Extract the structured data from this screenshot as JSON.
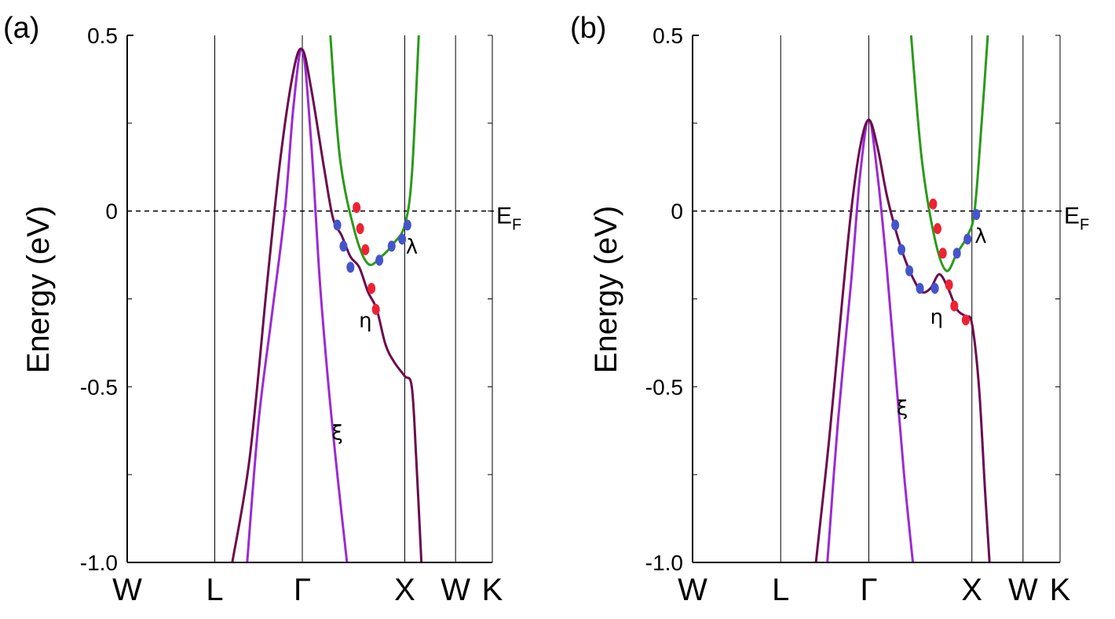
{
  "chart_data": [
    {
      "type": "line",
      "panel_label": "(a)",
      "ylabel": "Energy (eV)",
      "ylim": [
        -1.0,
        0.5
      ],
      "yticks": [
        0.5,
        0,
        -0.5,
        -1.0
      ],
      "ytick_labels": [
        "0.5",
        "0",
        "-0.5",
        "-1.0"
      ],
      "k_points": [
        {
          "label": "W",
          "x": 0.0
        },
        {
          "label": "L",
          "x": 1.0
        },
        {
          "label": "Γ",
          "x": 2.0
        },
        {
          "label": "X",
          "x": 3.17
        },
        {
          "label": "W",
          "x": 3.75
        },
        {
          "label": "K",
          "x": 4.17
        }
      ],
      "fermi_level": {
        "value": 0,
        "label": "E",
        "subscript": "F"
      },
      "series": [
        {
          "name": "ξ",
          "color": "#9a2bd4",
          "points": [
            [
              1.37,
              -1.0
            ],
            [
              1.5,
              -0.6
            ],
            [
              1.65,
              -0.3
            ],
            [
              1.8,
              0.0
            ],
            [
              1.9,
              0.3
            ],
            [
              2.0,
              0.46
            ],
            [
              2.1,
              0.2
            ],
            [
              2.2,
              -0.2
            ],
            [
              2.3,
              -0.5
            ],
            [
              2.4,
              -0.75
            ],
            [
              2.51,
              -1.0
            ]
          ]
        },
        {
          "name": "η",
          "color": "#6a0b4e",
          "points": [
            [
              1.2,
              -1.0
            ],
            [
              1.4,
              -0.7
            ],
            [
              1.6,
              -0.2
            ],
            [
              1.75,
              0.15
            ],
            [
              1.9,
              0.4
            ],
            [
              2.0,
              0.46
            ],
            [
              2.1,
              0.35
            ],
            [
              2.25,
              0.12
            ],
            [
              2.35,
              -0.02
            ],
            [
              2.45,
              -0.07
            ],
            [
              2.55,
              -0.13
            ],
            [
              2.65,
              -0.16
            ],
            [
              2.75,
              -0.23
            ],
            [
              2.85,
              -0.28
            ],
            [
              2.95,
              -0.38
            ],
            [
              3.05,
              -0.43
            ],
            [
              3.17,
              -0.47
            ],
            [
              3.25,
              -0.5
            ],
            [
              3.3,
              -0.7
            ],
            [
              3.36,
              -1.0
            ]
          ]
        },
        {
          "name": "λ",
          "color": "#2a9a1a",
          "points": [
            [
              2.32,
              0.5
            ],
            [
              2.43,
              0.15
            ],
            [
              2.6,
              -0.06
            ],
            [
              2.75,
              -0.15
            ],
            [
              2.9,
              -0.13
            ],
            [
              3.05,
              -0.09
            ],
            [
              3.17,
              -0.04
            ],
            [
              3.25,
              0.1
            ],
            [
              3.33,
              0.5
            ]
          ]
        }
      ],
      "markers": [
        {
          "x": 2.62,
          "y": 0.01,
          "color": "#ee2233"
        },
        {
          "x": 2.66,
          "y": -0.05,
          "color": "#ee2233"
        },
        {
          "x": 2.72,
          "y": -0.11,
          "color": "#ee2233"
        },
        {
          "x": 2.88,
          "y": -0.14,
          "color": "#4455cc"
        },
        {
          "x": 3.02,
          "y": -0.1,
          "color": "#4455cc"
        },
        {
          "x": 3.14,
          "y": -0.08,
          "color": "#4455cc"
        },
        {
          "x": 3.2,
          "y": -0.04,
          "color": "#4455cc"
        },
        {
          "x": 2.4,
          "y": -0.04,
          "color": "#4455cc"
        },
        {
          "x": 2.47,
          "y": -0.1,
          "color": "#4455cc"
        },
        {
          "x": 2.55,
          "y": -0.16,
          "color": "#4455cc"
        },
        {
          "x": 2.79,
          "y": -0.22,
          "color": "#ee2233"
        },
        {
          "x": 2.84,
          "y": -0.28,
          "color": "#ee2233"
        }
      ],
      "band_labels": [
        {
          "text": "λ",
          "x": 3.25,
          "y": -0.12
        },
        {
          "text": "η",
          "x": 2.72,
          "y": -0.33
        },
        {
          "text": "ξ",
          "x": 2.4,
          "y": -0.65
        }
      ]
    },
    {
      "type": "line",
      "panel_label": "(b)",
      "ylabel": "Energy (eV)",
      "ylim": [
        -1.0,
        0.5
      ],
      "yticks": [
        0.5,
        0,
        -0.5,
        -1.0
      ],
      "ytick_labels": [
        "0.5",
        "0",
        "-0.5",
        "-1.0"
      ],
      "k_points": [
        {
          "label": "W",
          "x": 0.0
        },
        {
          "label": "L",
          "x": 1.0
        },
        {
          "label": "Γ",
          "x": 2.0
        },
        {
          "label": "X",
          "x": 3.17
        },
        {
          "label": "W",
          "x": 3.75
        },
        {
          "label": "K",
          "x": 4.17
        }
      ],
      "fermi_level": {
        "value": 0,
        "label": "E",
        "subscript": "F"
      },
      "series": [
        {
          "name": "ξ",
          "color": "#9a2bd4",
          "points": [
            [
              1.53,
              -1.0
            ],
            [
              1.65,
              -0.6
            ],
            [
              1.8,
              -0.2
            ],
            [
              1.9,
              0.1
            ],
            [
              2.0,
              0.26
            ],
            [
              2.1,
              0.1
            ],
            [
              2.2,
              -0.15
            ],
            [
              2.3,
              -0.45
            ],
            [
              2.4,
              -0.75
            ],
            [
              2.5,
              -1.0
            ]
          ]
        },
        {
          "name": "η",
          "color": "#6a0b4e",
          "points": [
            [
              1.4,
              -1.0
            ],
            [
              1.55,
              -0.65
            ],
            [
              1.7,
              -0.25
            ],
            [
              1.8,
              0.0
            ],
            [
              1.9,
              0.18
            ],
            [
              2.0,
              0.26
            ],
            [
              2.1,
              0.18
            ],
            [
              2.2,
              0.05
            ],
            [
              2.3,
              -0.05
            ],
            [
              2.4,
              -0.13
            ],
            [
              2.5,
              -0.19
            ],
            [
              2.6,
              -0.23
            ],
            [
              2.7,
              -0.22
            ],
            [
              2.8,
              -0.18
            ],
            [
              2.9,
              -0.22
            ],
            [
              3.0,
              -0.28
            ],
            [
              3.1,
              -0.3
            ],
            [
              3.17,
              -0.32
            ],
            [
              3.25,
              -0.5
            ],
            [
              3.32,
              -0.8
            ],
            [
              3.37,
              -1.0
            ]
          ]
        },
        {
          "name": "λ",
          "color": "#2a9a1a",
          "points": [
            [
              2.48,
              0.5
            ],
            [
              2.6,
              0.15
            ],
            [
              2.75,
              -0.08
            ],
            [
              2.88,
              -0.17
            ],
            [
              3.0,
              -0.12
            ],
            [
              3.12,
              -0.07
            ],
            [
              3.2,
              0.0
            ],
            [
              3.28,
              0.25
            ],
            [
              3.35,
              0.5
            ]
          ]
        }
      ],
      "markers": [
        {
          "x": 2.73,
          "y": 0.02,
          "color": "#ee2233"
        },
        {
          "x": 2.78,
          "y": -0.05,
          "color": "#ee2233"
        },
        {
          "x": 2.84,
          "y": -0.12,
          "color": "#ee2233"
        },
        {
          "x": 3.0,
          "y": -0.12,
          "color": "#4455cc"
        },
        {
          "x": 3.12,
          "y": -0.08,
          "color": "#4455cc"
        },
        {
          "x": 3.22,
          "y": -0.01,
          "color": "#4455cc"
        },
        {
          "x": 2.3,
          "y": -0.04,
          "color": "#4455cc"
        },
        {
          "x": 2.37,
          "y": -0.11,
          "color": "#4455cc"
        },
        {
          "x": 2.46,
          "y": -0.17,
          "color": "#4455cc"
        },
        {
          "x": 2.58,
          "y": -0.22,
          "color": "#4455cc"
        },
        {
          "x": 2.75,
          "y": -0.22,
          "color": "#4455cc"
        },
        {
          "x": 2.91,
          "y": -0.21,
          "color": "#ee2233"
        },
        {
          "x": 2.97,
          "y": -0.27,
          "color": "#ee2233"
        },
        {
          "x": 3.1,
          "y": -0.31,
          "color": "#ee2233"
        }
      ],
      "band_labels": [
        {
          "text": "λ",
          "x": 3.27,
          "y": -0.09
        },
        {
          "text": "η",
          "x": 2.77,
          "y": -0.32
        },
        {
          "text": "ξ",
          "x": 2.38,
          "y": -0.58
        }
      ]
    }
  ]
}
